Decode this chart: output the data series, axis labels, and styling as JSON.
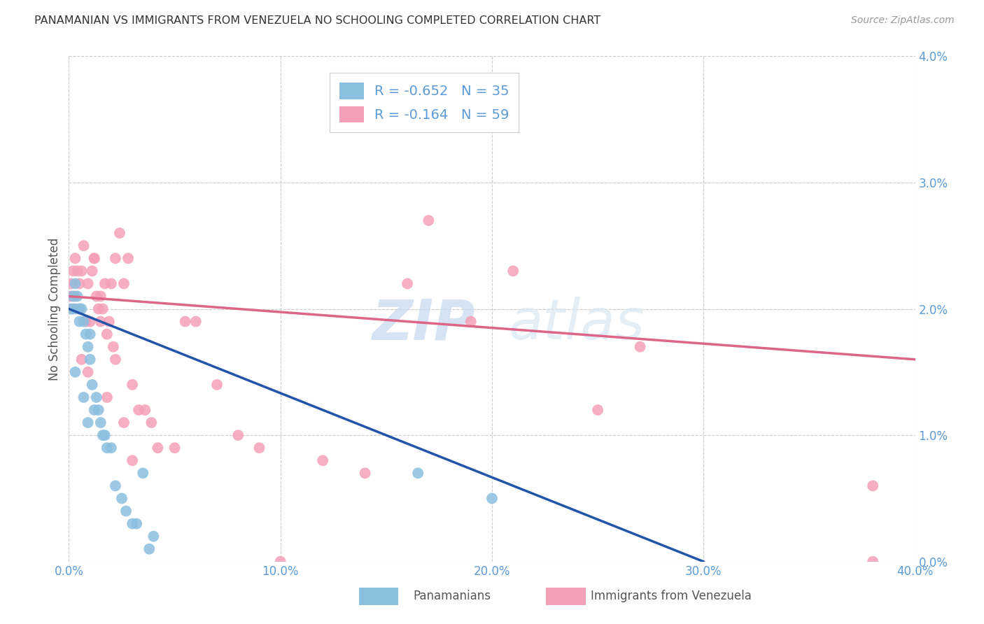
{
  "title": "PANAMANIAN VS IMMIGRANTS FROM VENEZUELA NO SCHOOLING COMPLETED CORRELATION CHART",
  "source": "Source: ZipAtlas.com",
  "ylabel": "No Schooling Completed",
  "blue_color": "#8bbfdf",
  "pink_color": "#f4a0b8",
  "blue_line_color": "#2255aa",
  "pink_line_color": "#dd6688",
  "watermark_zip": "ZIP",
  "watermark_atlas": "atlas",
  "blue_R": -0.652,
  "pink_R": -0.164,
  "blue_N": 35,
  "pink_N": 59,
  "xlim": [
    0.0,
    0.4
  ],
  "ylim": [
    0.0,
    0.04
  ],
  "xtick_vals": [
    0.0,
    0.1,
    0.2,
    0.3,
    0.4
  ],
  "xtick_labels": [
    "0.0%",
    "10.0%",
    "20.0%",
    "30.0%",
    "40.0%"
  ],
  "ytick_vals": [
    0.0,
    0.01,
    0.02,
    0.03,
    0.04
  ],
  "ytick_labels": [
    "0.0%",
    "1.0%",
    "2.0%",
    "3.0%",
    "4.0%"
  ],
  "legend_label1": "Panamanians",
  "legend_label2": "Immigrants from Venezuela",
  "blue_x": [
    0.001,
    0.002,
    0.003,
    0.003,
    0.004,
    0.005,
    0.005,
    0.006,
    0.007,
    0.008,
    0.009,
    0.01,
    0.01,
    0.011,
    0.012,
    0.013,
    0.014,
    0.015,
    0.016,
    0.017,
    0.018,
    0.02,
    0.022,
    0.025,
    0.027,
    0.03,
    0.032,
    0.035,
    0.038,
    0.04,
    0.165,
    0.2,
    0.003,
    0.007,
    0.009
  ],
  "blue_y": [
    0.02,
    0.021,
    0.022,
    0.02,
    0.021,
    0.02,
    0.019,
    0.02,
    0.019,
    0.018,
    0.017,
    0.016,
    0.018,
    0.014,
    0.012,
    0.013,
    0.012,
    0.011,
    0.01,
    0.01,
    0.009,
    0.009,
    0.006,
    0.005,
    0.004,
    0.003,
    0.003,
    0.007,
    0.001,
    0.002,
    0.007,
    0.005,
    0.015,
    0.013,
    0.011
  ],
  "pink_x": [
    0.001,
    0.001,
    0.002,
    0.002,
    0.003,
    0.003,
    0.004,
    0.005,
    0.005,
    0.006,
    0.007,
    0.008,
    0.009,
    0.01,
    0.011,
    0.012,
    0.013,
    0.014,
    0.015,
    0.016,
    0.017,
    0.018,
    0.019,
    0.02,
    0.021,
    0.022,
    0.024,
    0.026,
    0.028,
    0.03,
    0.033,
    0.036,
    0.039,
    0.042,
    0.05,
    0.055,
    0.06,
    0.07,
    0.08,
    0.09,
    0.1,
    0.12,
    0.14,
    0.16,
    0.17,
    0.19,
    0.21,
    0.25,
    0.27,
    0.38,
    0.38,
    0.006,
    0.009,
    0.012,
    0.015,
    0.018,
    0.022,
    0.026,
    0.03
  ],
  "pink_y": [
    0.022,
    0.021,
    0.023,
    0.02,
    0.024,
    0.021,
    0.023,
    0.022,
    0.02,
    0.023,
    0.025,
    0.019,
    0.022,
    0.019,
    0.023,
    0.024,
    0.021,
    0.02,
    0.019,
    0.02,
    0.022,
    0.018,
    0.019,
    0.022,
    0.017,
    0.024,
    0.026,
    0.022,
    0.024,
    0.014,
    0.012,
    0.012,
    0.011,
    0.009,
    0.009,
    0.019,
    0.019,
    0.014,
    0.01,
    0.009,
    0.0,
    0.008,
    0.007,
    0.022,
    0.027,
    0.019,
    0.023,
    0.012,
    0.017,
    0.006,
    0.0,
    0.016,
    0.015,
    0.024,
    0.021,
    0.013,
    0.016,
    0.011,
    0.008
  ],
  "blue_line_x": [
    0.0,
    0.3
  ],
  "blue_line_y_start": 0.02,
  "blue_line_y_end": 0.0,
  "pink_line_x": [
    0.0,
    0.4
  ],
  "pink_line_y_start": 0.021,
  "pink_line_y_end": 0.016
}
